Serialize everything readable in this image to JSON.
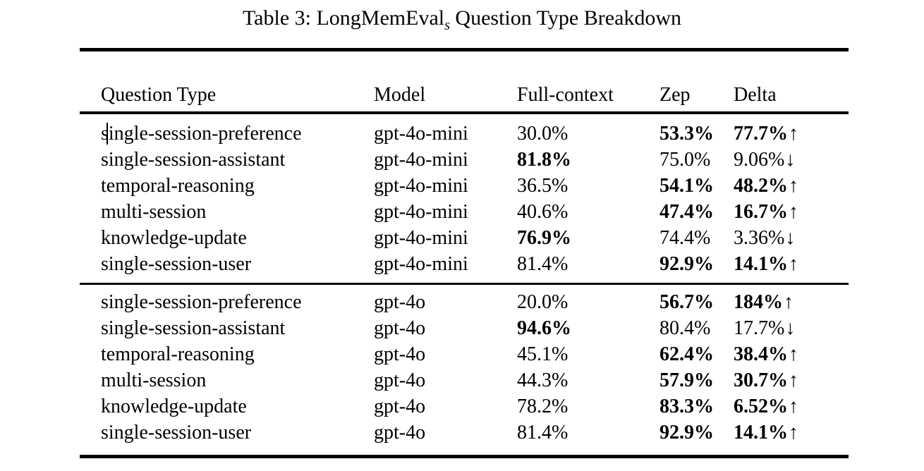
{
  "caption": {
    "prefix": "Table 3: LongMemEval",
    "subscript": "s",
    "suffix": " Question Type Breakdown"
  },
  "icons": {
    "up": "↑",
    "down": "↓"
  },
  "colors": {
    "text": "#000000",
    "background": "#ffffff",
    "rule": "#000000"
  },
  "text_cursor": {
    "visible": true,
    "section": 0,
    "row": 0
  },
  "table": {
    "columns": [
      "Question Type",
      "Model",
      "Full-context",
      "Zep",
      "Delta"
    ],
    "sections": [
      {
        "rows": [
          {
            "question_type": "single-session-preference",
            "model": "gpt-4o-mini",
            "full_context": {
              "text": "30.0%",
              "bold": false
            },
            "zep": {
              "text": "53.3%",
              "bold": true
            },
            "delta": {
              "text": "77.7%",
              "bold": true,
              "arrow": "up"
            }
          },
          {
            "question_type": "single-session-assistant",
            "model": "gpt-4o-mini",
            "full_context": {
              "text": "81.8%",
              "bold": true
            },
            "zep": {
              "text": "75.0%",
              "bold": false
            },
            "delta": {
              "text": "9.06%",
              "bold": false,
              "arrow": "down"
            }
          },
          {
            "question_type": "temporal-reasoning",
            "model": "gpt-4o-mini",
            "full_context": {
              "text": "36.5%",
              "bold": false
            },
            "zep": {
              "text": "54.1%",
              "bold": true
            },
            "delta": {
              "text": "48.2%",
              "bold": true,
              "arrow": "up"
            }
          },
          {
            "question_type": "multi-session",
            "model": "gpt-4o-mini",
            "full_context": {
              "text": "40.6%",
              "bold": false
            },
            "zep": {
              "text": "47.4%",
              "bold": true
            },
            "delta": {
              "text": "16.7%",
              "bold": true,
              "arrow": "up"
            }
          },
          {
            "question_type": "knowledge-update",
            "model": "gpt-4o-mini",
            "full_context": {
              "text": "76.9%",
              "bold": true
            },
            "zep": {
              "text": "74.4%",
              "bold": false
            },
            "delta": {
              "text": "3.36%",
              "bold": false,
              "arrow": "down"
            }
          },
          {
            "question_type": "single-session-user",
            "model": "gpt-4o-mini",
            "full_context": {
              "text": "81.4%",
              "bold": false
            },
            "zep": {
              "text": "92.9%",
              "bold": true
            },
            "delta": {
              "text": "14.1%",
              "bold": true,
              "arrow": "up"
            }
          }
        ]
      },
      {
        "rows": [
          {
            "question_type": "single-session-preference",
            "model": "gpt-4o",
            "full_context": {
              "text": "20.0%",
              "bold": false
            },
            "zep": {
              "text": "56.7%",
              "bold": true
            },
            "delta": {
              "text": "184%",
              "bold": true,
              "arrow": "up"
            }
          },
          {
            "question_type": "single-session-assistant",
            "model": "gpt-4o",
            "full_context": {
              "text": "94.6%",
              "bold": true
            },
            "zep": {
              "text": "80.4%",
              "bold": false
            },
            "delta": {
              "text": "17.7%",
              "bold": false,
              "arrow": "down"
            }
          },
          {
            "question_type": "temporal-reasoning",
            "model": "gpt-4o",
            "full_context": {
              "text": "45.1%",
              "bold": false
            },
            "zep": {
              "text": "62.4%",
              "bold": true
            },
            "delta": {
              "text": "38.4%",
              "bold": true,
              "arrow": "up"
            }
          },
          {
            "question_type": "multi-session",
            "model": "gpt-4o",
            "full_context": {
              "text": "44.3%",
              "bold": false
            },
            "zep": {
              "text": "57.9%",
              "bold": true
            },
            "delta": {
              "text": "30.7%",
              "bold": true,
              "arrow": "up"
            }
          },
          {
            "question_type": "knowledge-update",
            "model": "gpt-4o",
            "full_context": {
              "text": "78.2%",
              "bold": false
            },
            "zep": {
              "text": "83.3%",
              "bold": true
            },
            "delta": {
              "text": "6.52%",
              "bold": true,
              "arrow": "up"
            }
          },
          {
            "question_type": "single-session-user",
            "model": "gpt-4o",
            "full_context": {
              "text": "81.4%",
              "bold": false
            },
            "zep": {
              "text": "92.9%",
              "bold": true
            },
            "delta": {
              "text": "14.1%",
              "bold": true,
              "arrow": "up"
            }
          }
        ]
      }
    ]
  }
}
